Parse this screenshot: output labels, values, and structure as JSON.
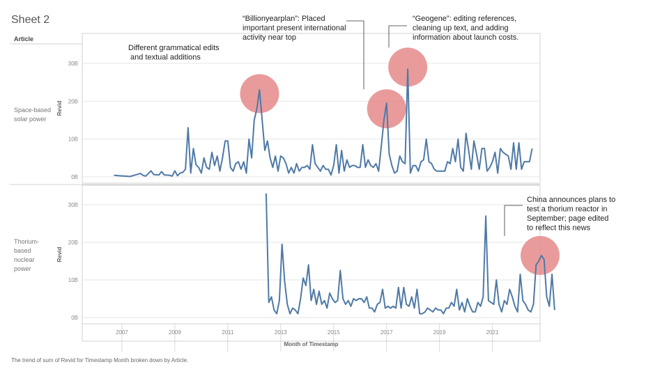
{
  "sheet_title": "Sheet 2",
  "column_header": "Article",
  "caption": "The trend of sum of Revid for Timestamp Month broken down by Article.",
  "colors": {
    "line": "#4e79a7",
    "highlight": "#e58a8a",
    "grid": "#e6e6e6",
    "border": "#d0d0d0"
  },
  "chart_data": {
    "type": "line",
    "xlabel": "Month of Timestamp",
    "ylabel": "Revid",
    "x_ticks": [
      "2007",
      "2009",
      "2011",
      "2013",
      "2015",
      "2017",
      "2019",
      "2021"
    ],
    "y_ticks": [
      "0B",
      "10B",
      "20B",
      "30B"
    ],
    "y_tick_values": [
      0,
      10,
      20,
      30
    ],
    "xlim": [
      2005.5,
      2022.8
    ],
    "ylim": [
      0,
      33
    ],
    "panels": [
      {
        "article": "Space-based solar power",
        "label_lines": [
          "Space-based",
          "solar power"
        ],
        "points": [
          [
            2006.7,
            0.4
          ],
          [
            2006.9,
            0.3
          ],
          [
            2007.1,
            0.2
          ],
          [
            2007.3,
            0.1
          ],
          [
            2007.5,
            0.5
          ],
          [
            2007.7,
            0.9
          ],
          [
            2007.8,
            0.4
          ],
          [
            2007.9,
            0.2
          ],
          [
            2008.1,
            1.6
          ],
          [
            2008.2,
            0.6
          ],
          [
            2008.4,
            0.5
          ],
          [
            2008.5,
            1.4
          ],
          [
            2008.6,
            0.5
          ],
          [
            2008.8,
            0.4
          ],
          [
            2008.9,
            0.2
          ],
          [
            2009.0,
            1.6
          ],
          [
            2009.1,
            0.3
          ],
          [
            2009.2,
            1.0
          ],
          [
            2009.3,
            1.2
          ],
          [
            2009.4,
            2.0
          ],
          [
            2009.5,
            13.0
          ],
          [
            2009.6,
            1.0
          ],
          [
            2009.7,
            7.5
          ],
          [
            2009.8,
            3.2
          ],
          [
            2009.9,
            2.5
          ],
          [
            2010.0,
            1.0
          ],
          [
            2010.1,
            5.0
          ],
          [
            2010.2,
            2.5
          ],
          [
            2010.3,
            2.0
          ],
          [
            2010.4,
            6.5
          ],
          [
            2010.5,
            3.0
          ],
          [
            2010.6,
            5.5
          ],
          [
            2010.7,
            1.5
          ],
          [
            2010.8,
            5.0
          ],
          [
            2010.9,
            9.5
          ],
          [
            2011.0,
            9.5
          ],
          [
            2011.1,
            2.5
          ],
          [
            2011.2,
            1.5
          ],
          [
            2011.3,
            3.5
          ],
          [
            2011.4,
            4.0
          ],
          [
            2011.5,
            2.0
          ],
          [
            2011.6,
            4.0
          ],
          [
            2011.7,
            1.0
          ],
          [
            2011.8,
            10.0
          ],
          [
            2011.9,
            5.0
          ],
          [
            2012.0,
            15.0
          ],
          [
            2012.1,
            18.0
          ],
          [
            2012.2,
            23.0
          ],
          [
            2012.3,
            15.0
          ],
          [
            2012.4,
            7.0
          ],
          [
            2012.5,
            9.5
          ],
          [
            2012.6,
            5.0
          ],
          [
            2012.7,
            2.5
          ],
          [
            2012.8,
            5.5
          ],
          [
            2012.9,
            1.5
          ],
          [
            2013.0,
            5.5
          ],
          [
            2013.1,
            5.0
          ],
          [
            2013.2,
            3.5
          ],
          [
            2013.3,
            1.0
          ],
          [
            2013.4,
            2.5
          ],
          [
            2013.5,
            1.0
          ],
          [
            2013.6,
            3.5
          ],
          [
            2013.7,
            1.5
          ],
          [
            2013.8,
            2.5
          ],
          [
            2013.9,
            2.5
          ],
          [
            2014.0,
            3.0
          ],
          [
            2014.1,
            2.0
          ],
          [
            2014.2,
            8.5
          ],
          [
            2014.3,
            3.5
          ],
          [
            2014.4,
            2.5
          ],
          [
            2014.5,
            1.5
          ],
          [
            2014.6,
            3.0
          ],
          [
            2014.7,
            2.0
          ],
          [
            2014.8,
            2.0
          ],
          [
            2014.9,
            0.5
          ],
          [
            2015.0,
            3.0
          ],
          [
            2015.1,
            8.5
          ],
          [
            2015.2,
            1.0
          ],
          [
            2015.3,
            7.0
          ],
          [
            2015.4,
            1.5
          ],
          [
            2015.5,
            4.5
          ],
          [
            2015.6,
            2.5
          ],
          [
            2015.7,
            3.0
          ],
          [
            2015.8,
            3.0
          ],
          [
            2015.9,
            2.5
          ],
          [
            2016.0,
            2.5
          ],
          [
            2016.1,
            8.5
          ],
          [
            2016.2,
            2.5
          ],
          [
            2016.3,
            4.5
          ],
          [
            2016.4,
            3.0
          ],
          [
            2016.5,
            2.5
          ],
          [
            2016.6,
            3.5
          ],
          [
            2016.7,
            1.5
          ],
          [
            2016.8,
            8.0
          ],
          [
            2016.9,
            15.0
          ],
          [
            2017.0,
            19.5
          ],
          [
            2017.1,
            6.0
          ],
          [
            2017.2,
            3.0
          ],
          [
            2017.3,
            1.0
          ],
          [
            2017.4,
            1.5
          ],
          [
            2017.5,
            5.5
          ],
          [
            2017.6,
            4.0
          ],
          [
            2017.7,
            3.5
          ],
          [
            2017.8,
            28.5
          ],
          [
            2017.9,
            1.0
          ],
          [
            2018.0,
            3.0
          ],
          [
            2018.1,
            3.0
          ],
          [
            2018.2,
            1.5
          ],
          [
            2018.3,
            4.0
          ],
          [
            2018.4,
            4.5
          ],
          [
            2018.5,
            10.0
          ],
          [
            2018.6,
            4.0
          ],
          [
            2018.7,
            3.5
          ],
          [
            2018.8,
            2.0
          ],
          [
            2018.9,
            1.5
          ],
          [
            2019.0,
            1.5
          ],
          [
            2019.1,
            1.5
          ],
          [
            2019.2,
            1.5
          ],
          [
            2019.3,
            4.0
          ],
          [
            2019.4,
            3.5
          ],
          [
            2019.5,
            7.5
          ],
          [
            2019.6,
            4.0
          ],
          [
            2019.7,
            10.0
          ],
          [
            2019.8,
            2.5
          ],
          [
            2019.9,
            1.5
          ],
          [
            2020.0,
            11.5
          ],
          [
            2020.1,
            7.0
          ],
          [
            2020.2,
            2.0
          ],
          [
            2020.3,
            9.5
          ],
          [
            2020.4,
            6.0
          ],
          [
            2020.5,
            2.0
          ],
          [
            2020.6,
            7.5
          ],
          [
            2020.7,
            7.5
          ],
          [
            2020.8,
            1.5
          ],
          [
            2020.9,
            2.5
          ],
          [
            2021.0,
            4.0
          ],
          [
            2021.1,
            6.5
          ],
          [
            2021.2,
            1.0
          ],
          [
            2021.3,
            7.5
          ],
          [
            2021.4,
            6.5
          ],
          [
            2021.5,
            6.0
          ],
          [
            2021.6,
            5.5
          ],
          [
            2021.7,
            2.0
          ],
          [
            2021.8,
            9.0
          ],
          [
            2021.9,
            2.0
          ],
          [
            2022.0,
            9.0
          ],
          [
            2022.1,
            2.0
          ],
          [
            2022.2,
            4.0
          ],
          [
            2022.3,
            4.0
          ],
          [
            2022.4,
            4.0
          ],
          [
            2022.5,
            7.5
          ]
        ]
      },
      {
        "article": "Thorium-based nuclear power",
        "label_lines": [
          "Thorium-",
          "based",
          "nuclear",
          "power"
        ],
        "points": [
          [
            2012.45,
            33.0
          ],
          [
            2012.55,
            4.0
          ],
          [
            2012.65,
            5.5
          ],
          [
            2012.75,
            2.0
          ],
          [
            2012.85,
            1.0
          ],
          [
            2012.95,
            4.5
          ],
          [
            2013.05,
            19.5
          ],
          [
            2013.15,
            9.5
          ],
          [
            2013.25,
            3.5
          ],
          [
            2013.35,
            1.0
          ],
          [
            2013.45,
            2.5
          ],
          [
            2013.55,
            2.0
          ],
          [
            2013.65,
            1.0
          ],
          [
            2013.75,
            5.0
          ],
          [
            2013.85,
            10.5
          ],
          [
            2013.95,
            8.5
          ],
          [
            2014.05,
            14.0
          ],
          [
            2014.15,
            4.5
          ],
          [
            2014.25,
            7.5
          ],
          [
            2014.35,
            3.5
          ],
          [
            2014.45,
            7.0
          ],
          [
            2014.55,
            3.5
          ],
          [
            2014.65,
            4.5
          ],
          [
            2014.75,
            2.5
          ],
          [
            2014.85,
            6.5
          ],
          [
            2014.95,
            5.0
          ],
          [
            2015.05,
            4.0
          ],
          [
            2015.15,
            4.5
          ],
          [
            2015.25,
            12.5
          ],
          [
            2015.35,
            5.0
          ],
          [
            2015.45,
            3.5
          ],
          [
            2015.55,
            4.5
          ],
          [
            2015.65,
            3.0
          ],
          [
            2015.75,
            5.0
          ],
          [
            2015.85,
            4.5
          ],
          [
            2015.95,
            5.0
          ],
          [
            2016.05,
            5.0
          ],
          [
            2016.15,
            4.0
          ],
          [
            2016.25,
            5.5
          ],
          [
            2016.35,
            2.5
          ],
          [
            2016.45,
            2.5
          ],
          [
            2016.55,
            1.5
          ],
          [
            2016.65,
            3.5
          ],
          [
            2016.75,
            4.0
          ],
          [
            2016.85,
            7.5
          ],
          [
            2016.95,
            2.5
          ],
          [
            2017.05,
            3.0
          ],
          [
            2017.15,
            2.5
          ],
          [
            2017.25,
            3.0
          ],
          [
            2017.35,
            2.5
          ],
          [
            2017.45,
            8.0
          ],
          [
            2017.55,
            2.5
          ],
          [
            2017.65,
            8.0
          ],
          [
            2017.75,
            3.5
          ],
          [
            2017.85,
            3.0
          ],
          [
            2017.95,
            5.5
          ],
          [
            2018.05,
            2.5
          ],
          [
            2018.15,
            7.5
          ],
          [
            2018.25,
            1.0
          ],
          [
            2018.35,
            1.0
          ],
          [
            2018.45,
            1.5
          ],
          [
            2018.55,
            2.5
          ],
          [
            2018.65,
            2.0
          ],
          [
            2018.75,
            1.5
          ],
          [
            2018.85,
            2.5
          ],
          [
            2018.95,
            2.0
          ],
          [
            2019.05,
            2.0
          ],
          [
            2019.15,
            1.0
          ],
          [
            2019.25,
            2.5
          ],
          [
            2019.35,
            2.5
          ],
          [
            2019.45,
            4.0
          ],
          [
            2019.55,
            3.0
          ],
          [
            2019.65,
            7.5
          ],
          [
            2019.75,
            2.0
          ],
          [
            2019.85,
            4.0
          ],
          [
            2019.95,
            1.5
          ],
          [
            2020.05,
            5.0
          ],
          [
            2020.15,
            3.0
          ],
          [
            2020.25,
            1.5
          ],
          [
            2020.35,
            1.5
          ],
          [
            2020.45,
            4.0
          ],
          [
            2020.55,
            3.0
          ],
          [
            2020.65,
            5.5
          ],
          [
            2020.75,
            27.0
          ],
          [
            2020.85,
            4.5
          ],
          [
            2020.95,
            4.0
          ],
          [
            2021.05,
            3.5
          ],
          [
            2021.15,
            10.0
          ],
          [
            2021.25,
            3.5
          ],
          [
            2021.35,
            1.5
          ],
          [
            2021.45,
            4.5
          ],
          [
            2021.55,
            3.5
          ],
          [
            2021.65,
            7.5
          ],
          [
            2021.75,
            5.5
          ],
          [
            2021.85,
            3.0
          ],
          [
            2021.95,
            1.5
          ],
          [
            2022.05,
            11.5
          ],
          [
            2022.15,
            4.5
          ],
          [
            2022.25,
            3.5
          ],
          [
            2022.35,
            2.0
          ],
          [
            2022.45,
            1.5
          ],
          [
            2022.55,
            3.5
          ],
          [
            2022.65,
            14.0
          ],
          [
            2022.75,
            15.0
          ],
          [
            2022.85,
            16.5
          ],
          [
            2022.95,
            15.5
          ],
          [
            2023.05,
            5.5
          ],
          [
            2023.15,
            3.0
          ],
          [
            2023.25,
            11.5
          ],
          [
            2023.35,
            2.0
          ]
        ]
      }
    ],
    "annotations": [
      {
        "panel": 0,
        "x": 2012.2,
        "y": 22,
        "text": [
          "Different grammatical edits",
          "and textual additions"
        ]
      },
      {
        "panel": 0,
        "x": 2017.0,
        "y": 18,
        "text": [
          "“Billionyearplan”: Placed",
          "important present international",
          "activity near top"
        ]
      },
      {
        "panel": 0,
        "x": 2017.8,
        "y": 29,
        "text": [
          "“Geogene”: editing references,",
          "cleaning up text, and adding",
          "information about launch costs."
        ]
      },
      {
        "panel": 1,
        "x": 2022.8,
        "y": 16.5,
        "text": [
          "China announces plans to",
          "test a thorium reactor in",
          "September; page edited",
          "to reflect this news"
        ]
      }
    ]
  }
}
